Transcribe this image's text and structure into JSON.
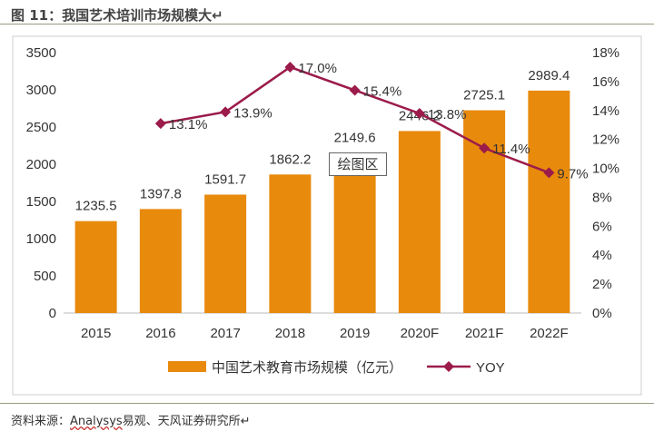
{
  "header": {
    "title": "图 11：我国艺术培训市场规模大↵"
  },
  "footer": {
    "source_label": "资料来源：",
    "source_brand": "Analysys",
    "source_rest": "易观、天风证券研究所↵"
  },
  "tooltip": "绘图区",
  "chart_data": {
    "type": "bar",
    "categories": [
      "2015",
      "2016",
      "2017",
      "2018",
      "2019",
      "2020F",
      "2021F",
      "2022F"
    ],
    "series": [
      {
        "name": "中国艺术教育市场规模（亿元）",
        "type": "bar",
        "axis": "left",
        "color": "#E88A0C",
        "values": [
          1235.5,
          1397.8,
          1591.7,
          1862.2,
          2149.6,
          2446.2,
          2725.1,
          2989.4
        ],
        "labels": [
          "1235.5",
          "1397.8",
          "1591.7",
          "1862.2",
          "2149.6",
          "2446.2",
          "2725.1",
          "2989.4"
        ]
      },
      {
        "name": "YOY",
        "type": "line",
        "axis": "right",
        "color": "#9B1B4A",
        "values": [
          null,
          13.1,
          13.9,
          17.0,
          15.4,
          13.8,
          11.4,
          9.7
        ],
        "labels": [
          "",
          "13.1%",
          "13.9%",
          "17.0%",
          "15.4%",
          "13.8%",
          "11.4%",
          "9.7%"
        ]
      }
    ],
    "ylim": [
      0,
      3500
    ],
    "yticks": [
      "0",
      "500",
      "1000",
      "1500",
      "2000",
      "2500",
      "3000",
      "3500"
    ],
    "y2lim": [
      0,
      18
    ],
    "y2ticks": [
      "0%",
      "2%",
      "4%",
      "6%",
      "8%",
      "10%",
      "12%",
      "14%",
      "16%",
      "18%"
    ],
    "legend": "bottom"
  }
}
